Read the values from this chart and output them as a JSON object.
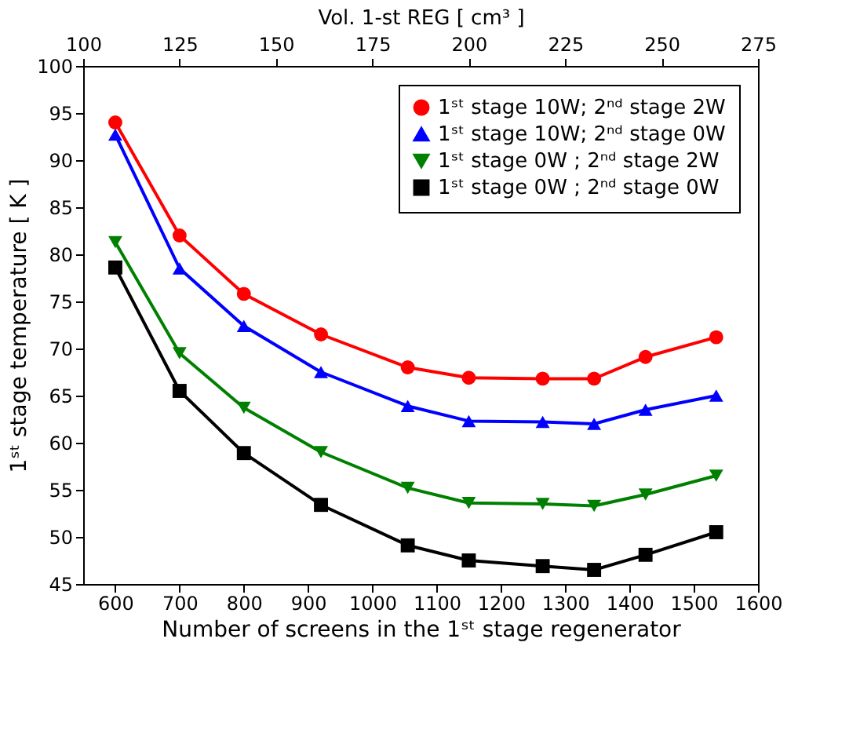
{
  "chart_data": {
    "type": "line",
    "x": [
      600,
      700,
      800,
      920,
      1055,
      1150,
      1265,
      1345,
      1425,
      1535
    ],
    "series": [
      {
        "name": "1ˢᵗ stage 10W; 2ⁿᵈ stage 2W",
        "color": "#ff0000",
        "marker": "circle",
        "values": [
          94.0,
          82.0,
          75.8,
          71.5,
          68.0,
          66.9,
          66.8,
          66.8,
          69.1,
          71.2
        ]
      },
      {
        "name": "1ˢᵗ stage 10W; 2ⁿᵈ stage 0W",
        "color": "#0000ff",
        "marker": "triangle",
        "values": [
          92.7,
          78.5,
          72.4,
          67.5,
          63.9,
          62.3,
          62.2,
          62.0,
          63.5,
          65.0
        ]
      },
      {
        "name": "1ˢᵗ stage  0W ; 2ⁿᵈ stage 2W",
        "color": "#008000",
        "marker": "triangle-down",
        "values": [
          81.3,
          69.5,
          63.7,
          59.0,
          55.2,
          53.6,
          53.5,
          53.3,
          54.5,
          56.5
        ]
      },
      {
        "name": "1ˢᵗ stage  0W ; 2ⁿᵈ stage 0W",
        "color": "#000000",
        "marker": "square",
        "values": [
          78.6,
          65.5,
          58.9,
          53.4,
          49.1,
          47.5,
          46.9,
          46.5,
          48.1,
          50.5
        ]
      }
    ],
    "xlabel": "Number of screens in the 1ˢᵗ stage regenerator",
    "ylabel": "1ˢᵗ stage temperature [ K ]",
    "x2label": "Vol. 1-st REG   [ cm³ ]",
    "xlim": [
      550,
      1600
    ],
    "xticks": [
      600,
      700,
      800,
      900,
      1000,
      1100,
      1200,
      1300,
      1400,
      1500,
      1600
    ],
    "ylim": [
      45,
      100
    ],
    "yticks": [
      45,
      50,
      55,
      60,
      65,
      70,
      75,
      80,
      85,
      90,
      95,
      100
    ],
    "x2lim": [
      100,
      275
    ],
    "x2ticks": [
      100,
      125,
      150,
      175,
      200,
      225,
      250,
      275
    ],
    "legend": "top right",
    "grid": false,
    "line_style": "solid"
  }
}
